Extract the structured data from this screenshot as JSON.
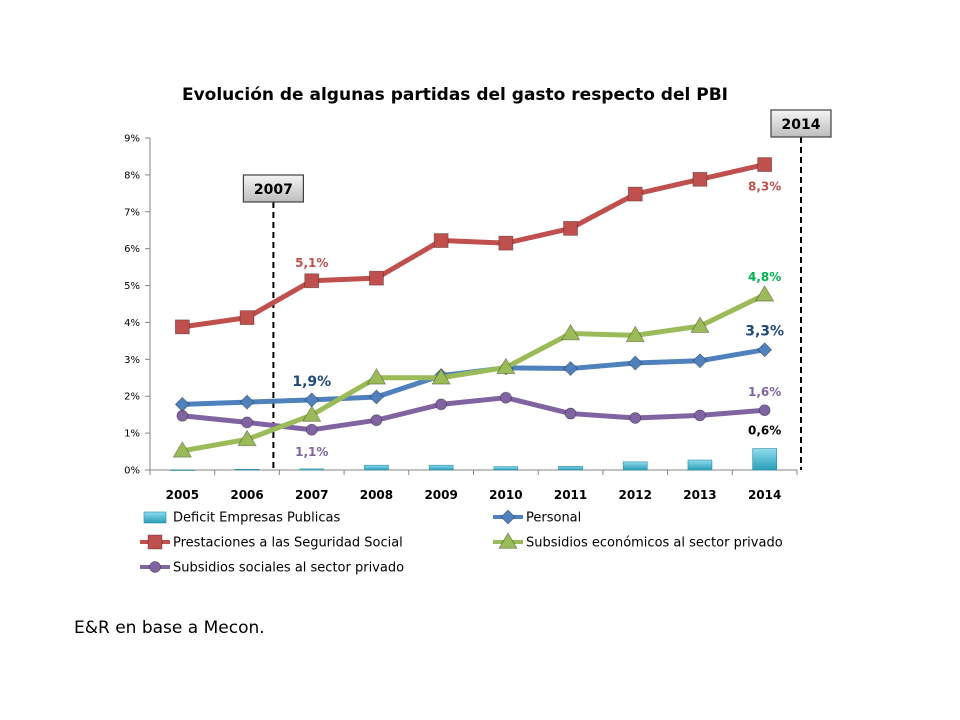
{
  "chart_data": {
    "type": "line",
    "title": "Evolución de algunas partidas del gasto respecto del PBI",
    "categories": [
      "2005",
      "2006",
      "2007",
      "2008",
      "2009",
      "2010",
      "2011",
      "2012",
      "2013",
      "2014"
    ],
    "y_ticks": [
      "0%",
      "1%",
      "2%",
      "3%",
      "4%",
      "5%",
      "6%",
      "7%",
      "8%",
      "9%"
    ],
    "ylim": [
      0,
      9
    ],
    "grid": false,
    "legend_position": "bottom",
    "series": [
      {
        "key": "deficit",
        "name": "Deficit Empresas Publicas",
        "type": "bar",
        "color": "#4bacc6",
        "values": [
          0.0,
          0.02,
          0.03,
          0.13,
          0.13,
          0.09,
          0.1,
          0.22,
          0.27,
          0.58
        ]
      },
      {
        "key": "personal",
        "name": "Personal",
        "type": "line",
        "marker": "diamond",
        "color": "#4f81bd",
        "values": [
          1.78,
          1.84,
          1.9,
          1.98,
          2.56,
          2.77,
          2.75,
          2.9,
          2.96,
          3.26
        ]
      },
      {
        "key": "prestaciones",
        "name": "Prestaciones a las Seguridad Social",
        "type": "line",
        "marker": "square",
        "color": "#c0504d",
        "values": [
          3.88,
          4.13,
          5.13,
          5.2,
          6.22,
          6.15,
          6.55,
          7.48,
          7.88,
          8.28
        ]
      },
      {
        "key": "subsidios_economicos",
        "name": "Subsidios económicos al sector privado",
        "type": "line",
        "marker": "triangle",
        "color": "#9bbb59",
        "values": [
          0.52,
          0.83,
          1.49,
          2.5,
          2.5,
          2.78,
          3.7,
          3.65,
          3.9,
          4.75
        ]
      },
      {
        "key": "subsidios_sociales",
        "name": "Subsidios sociales al sector privado",
        "type": "line",
        "marker": "circle",
        "color": "#8064a2",
        "values": [
          1.47,
          1.29,
          1.09,
          1.35,
          1.78,
          1.96,
          1.53,
          1.41,
          1.48,
          1.62
        ]
      }
    ],
    "annotations": [
      {
        "text": "5,1%",
        "series": "prestaciones",
        "index": 2,
        "color": "#c0504d",
        "size": 12,
        "position": "above"
      },
      {
        "text": "8,3%",
        "series": "prestaciones",
        "index": 9,
        "color": "#c0504d",
        "size": 12,
        "position": "below"
      },
      {
        "text": "4,8%",
        "series": "subsidios_economicos",
        "index": 9,
        "color": "#00b050",
        "size": 12,
        "position": "above"
      },
      {
        "text": "3,3%",
        "series": "personal",
        "index": 9,
        "color": "#1f497d",
        "size": 14,
        "position": "above"
      },
      {
        "text": "1,9%",
        "series": "personal",
        "index": 2,
        "color": "#1f497d",
        "size": 14,
        "position": "above"
      },
      {
        "text": "1,6%",
        "series": "subsidios_sociales",
        "index": 9,
        "color": "#8064a2",
        "size": 12,
        "position": "above"
      },
      {
        "text": "1,1%",
        "series": "subsidios_sociales",
        "index": 2,
        "color": "#8064a2",
        "size": 12,
        "position": "below"
      },
      {
        "text": "0,6%",
        "series": "deficit",
        "index": 9,
        "color": "#000000",
        "size": 12,
        "position": "above"
      }
    ],
    "vertical_markers": [
      {
        "label": "2007"
      },
      {
        "label": "2014"
      }
    ]
  },
  "source_note": "E&R en base a Mecon."
}
